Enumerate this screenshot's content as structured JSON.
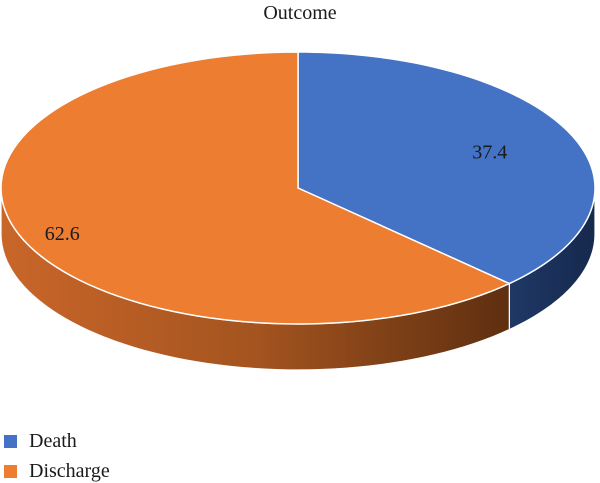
{
  "chart_data": {
    "type": "pie",
    "title": "Outcome",
    "categories": [
      "Death",
      "Discharge"
    ],
    "values": [
      37.4,
      62.6
    ],
    "data_labels": [
      "37.4",
      "62.6"
    ],
    "colors": [
      "#4472c4",
      "#ed7d31"
    ],
    "legend_position": "bottom-left",
    "style": "3d"
  }
}
